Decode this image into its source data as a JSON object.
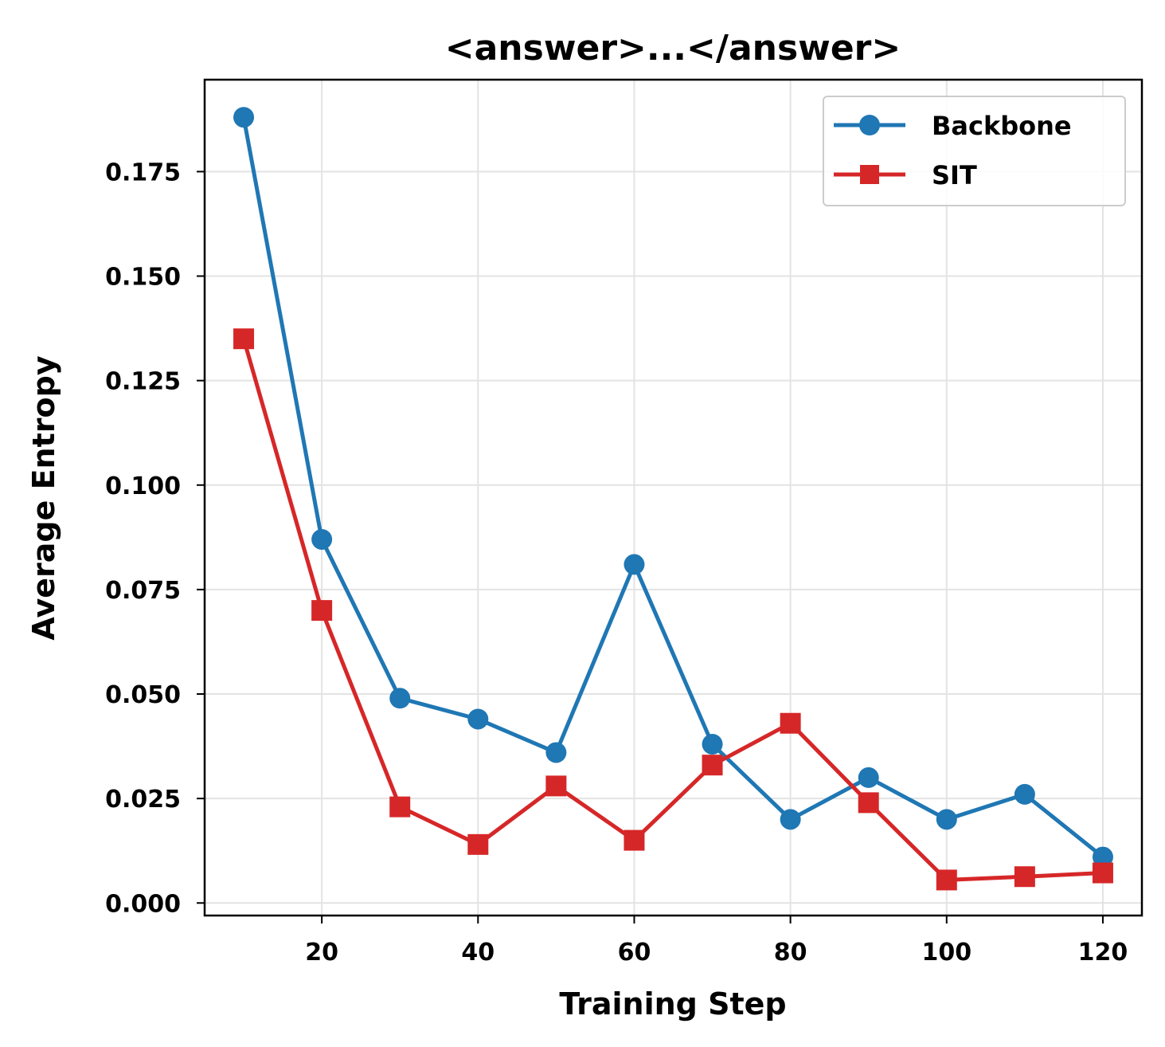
{
  "chart_data": {
    "type": "line",
    "title": "<answer>...</answer>",
    "xlabel": "Training Step",
    "ylabel": "Average Entropy",
    "x": [
      10,
      20,
      30,
      40,
      50,
      60,
      70,
      80,
      90,
      100,
      110,
      120
    ],
    "xlim": [
      5,
      125
    ],
    "ylim": [
      -0.003,
      0.197
    ],
    "xticks": [
      20,
      40,
      60,
      80,
      100,
      120
    ],
    "xtick_labels": [
      "20",
      "40",
      "60",
      "80",
      "100",
      "120"
    ],
    "yticks": [
      0.0,
      0.025,
      0.05,
      0.075,
      0.1,
      0.125,
      0.15,
      0.175
    ],
    "ytick_labels": [
      "0.000",
      "0.025",
      "0.050",
      "0.075",
      "0.100",
      "0.125",
      "0.150",
      "0.175"
    ],
    "grid": true,
    "legend_position": "top-right",
    "series": [
      {
        "name": "Backbone",
        "color": "#1f77b4",
        "marker": "circle",
        "values": [
          0.188,
          0.087,
          0.049,
          0.044,
          0.036,
          0.081,
          0.038,
          0.02,
          0.03,
          0.02,
          0.026,
          0.011
        ]
      },
      {
        "name": "SIT",
        "color": "#d62728",
        "marker": "square",
        "values": [
          0.135,
          0.07,
          0.023,
          0.014,
          0.028,
          0.015,
          0.033,
          0.043,
          0.024,
          0.0055,
          0.0063,
          0.0072
        ]
      }
    ]
  }
}
